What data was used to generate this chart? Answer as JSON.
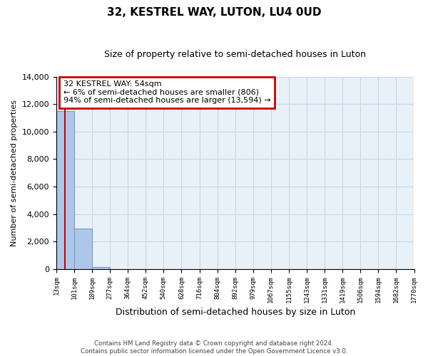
{
  "title": "32, KESTREL WAY, LUTON, LU4 0UD",
  "subtitle": "Size of property relative to semi-detached houses in Luton",
  "xlabel": "Distribution of semi-detached houses by size in Luton",
  "ylabel": "Number of semi-detached properties",
  "footer_line1": "Contains HM Land Registry data © Crown copyright and database right 2024.",
  "footer_line2": "Contains public sector information licensed under the Open Government Licence v3.0.",
  "annotation_line1": "32 KESTREL WAY: 54sqm",
  "annotation_line2": "← 6% of semi-detached houses are smaller (806)",
  "annotation_line3": "94% of semi-detached houses are larger (13,594) →",
  "bar_edges": [
    13,
    101,
    189,
    277,
    364,
    452,
    540,
    628,
    716,
    804,
    892,
    979,
    1067,
    1155,
    1243,
    1331,
    1419,
    1506,
    1594,
    1682,
    1770
  ],
  "bar_heights": [
    11500,
    2950,
    120,
    0,
    0,
    0,
    0,
    0,
    0,
    0,
    0,
    0,
    0,
    0,
    0,
    0,
    0,
    0,
    0,
    0
  ],
  "bar_color": "#aec6e8",
  "bar_edgecolor": "#6699cc",
  "property_line_x": 54,
  "property_line_color": "#cc0000",
  "annotation_box_color": "#cc0000",
  "ylim": [
    0,
    14000
  ],
  "yticks": [
    0,
    2000,
    4000,
    6000,
    8000,
    10000,
    12000,
    14000
  ],
  "background_color": "#ffffff",
  "grid_color": "#c8d8e8"
}
